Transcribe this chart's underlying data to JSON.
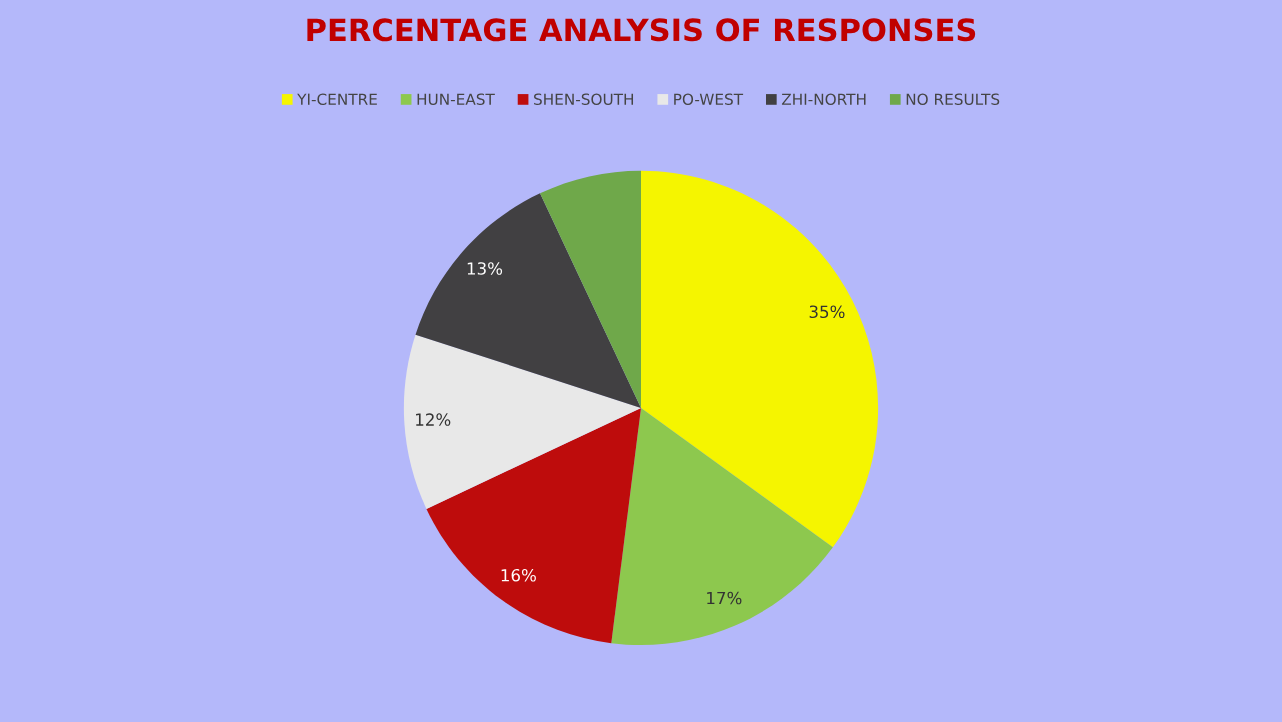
{
  "chart_data": {
    "type": "pie",
    "title": "PERCENTAGE ANALYSIS OF RESPONSES",
    "categories": [
      "YI-CENTRE",
      "HUN-EAST",
      "SHEN-SOUTH",
      "PO-WEST",
      "ZHI-NORTH",
      "NO RESULTS"
    ],
    "values": [
      35,
      17,
      16,
      12,
      13,
      7
    ],
    "colors": [
      "#f5f500",
      "#8dc84e",
      "#be0c0c",
      "#e8e8e8",
      "#414042",
      "#6fa84a"
    ],
    "value_labels": [
      "35%",
      "17%",
      "16%",
      "12%",
      "13%",
      null
    ],
    "legend": "top"
  }
}
